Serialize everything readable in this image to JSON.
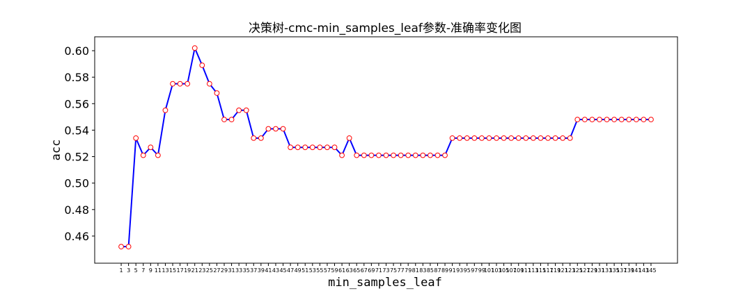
{
  "chart_data": {
    "type": "line",
    "title": "决策树-cmc-min_samples_leaf参数-准确率变化图",
    "xlabel": "min_samples_leaf",
    "ylabel": "acc",
    "x": [
      1,
      3,
      5,
      7,
      9,
      11,
      13,
      15,
      17,
      19,
      21,
      23,
      25,
      27,
      29,
      31,
      33,
      35,
      37,
      39,
      41,
      43,
      45,
      47,
      49,
      51,
      53,
      55,
      57,
      59,
      61,
      63,
      65,
      67,
      69,
      71,
      73,
      75,
      77,
      79,
      81,
      83,
      85,
      87,
      89,
      91,
      93,
      95,
      97,
      99,
      101,
      103,
      105,
      107,
      109,
      111,
      113,
      115,
      117,
      119,
      121,
      123,
      125,
      127,
      129,
      131,
      133,
      135,
      137,
      139,
      141,
      143,
      145
    ],
    "xtick_labels": [
      "1",
      "3",
      "5",
      "7",
      "9",
      "11",
      "13",
      "15",
      "17",
      "19",
      "21",
      "23",
      "25",
      "27",
      "29",
      "31",
      "33",
      "35",
      "37",
      "39",
      "41",
      "43",
      "45",
      "47",
      "49",
      "51",
      "53",
      "55",
      "57",
      "59",
      "61",
      "63",
      "65",
      "67",
      "69",
      "71",
      "73",
      "75",
      "77",
      "79",
      "81",
      "83",
      "85",
      "87",
      "89",
      "91",
      "93",
      "95",
      "97",
      "99",
      "101",
      "103",
      "105",
      "107",
      "109",
      "111",
      "113",
      "115",
      "117",
      "119",
      "121",
      "123",
      "125",
      "127",
      "129",
      "131",
      "133",
      "135",
      "137",
      "139",
      "141",
      "143",
      "145"
    ],
    "y": [
      0.452,
      0.452,
      0.534,
      0.521,
      0.527,
      0.521,
      0.555,
      0.575,
      0.575,
      0.575,
      0.602,
      0.589,
      0.575,
      0.568,
      0.548,
      0.548,
      0.555,
      0.555,
      0.534,
      0.534,
      0.541,
      0.541,
      0.541,
      0.527,
      0.527,
      0.527,
      0.527,
      0.527,
      0.527,
      0.527,
      0.521,
      0.534,
      0.521,
      0.521,
      0.521,
      0.521,
      0.521,
      0.521,
      0.521,
      0.521,
      0.521,
      0.521,
      0.521,
      0.521,
      0.521,
      0.534,
      0.534,
      0.534,
      0.534,
      0.534,
      0.534,
      0.534,
      0.534,
      0.534,
      0.534,
      0.534,
      0.534,
      0.534,
      0.534,
      0.534,
      0.534,
      0.534,
      0.548,
      0.548,
      0.548,
      0.548,
      0.548,
      0.548,
      0.548,
      0.548,
      0.548,
      0.548,
      0.548
    ],
    "ylim": [
      0.4395,
      0.6105
    ],
    "yticks": [
      0.46,
      0.48,
      0.5,
      0.52,
      0.54,
      0.56,
      0.58,
      0.6
    ],
    "ytick_labels": [
      "0.46",
      "0.48",
      "0.50",
      "0.52",
      "0.54",
      "0.56",
      "0.58",
      "0.60"
    ],
    "line_color": "#0000ff",
    "marker_face_color": "#ffffff",
    "marker_edge_color": "#ff0000",
    "grid": false,
    "legend": false
  }
}
